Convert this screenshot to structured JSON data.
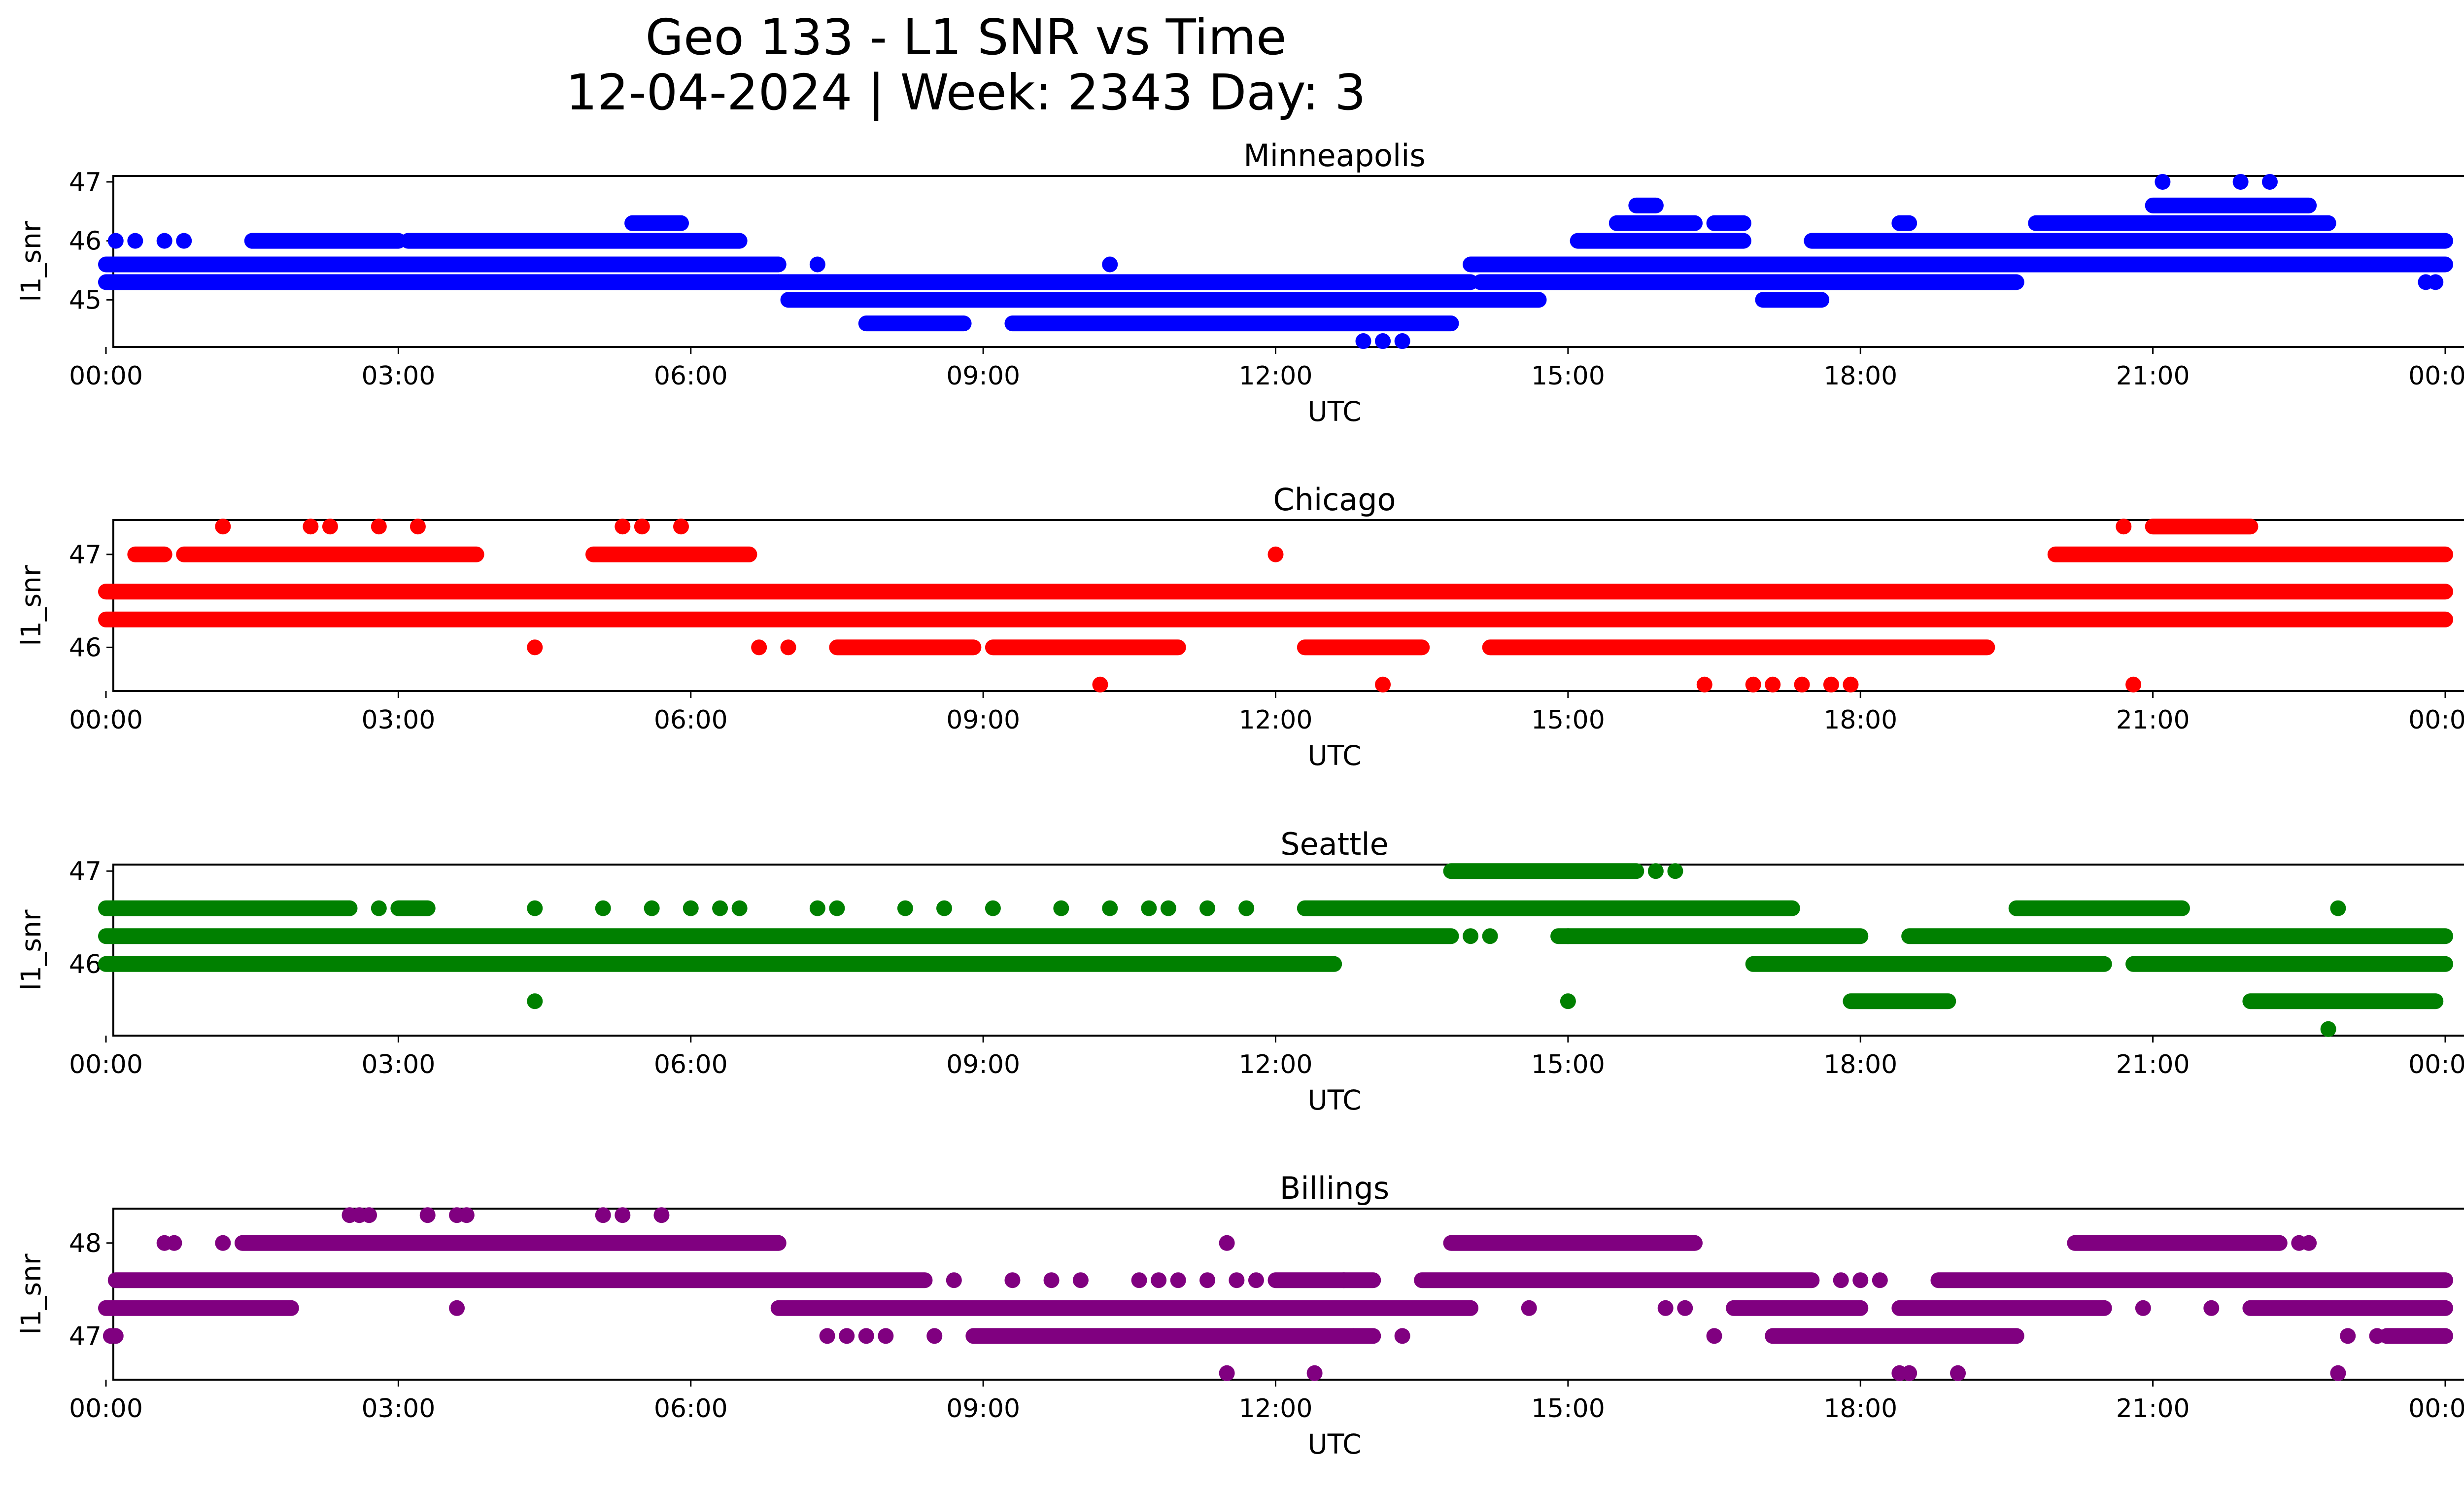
{
  "figure": {
    "title_line1": "Geo 133 - L1 SNR vs Time",
    "title_line2": "12-04-2024 | Week: 2343 Day: 3"
  },
  "chart_data": [
    {
      "type": "scatter",
      "title": "Minneapolis",
      "xlabel": "UTC",
      "ylabel": "l1_snr",
      "color": "#0000ff",
      "x_unit": "hours UTC",
      "x_ticks": [
        "00:00",
        "03:00",
        "06:00",
        "09:00",
        "12:00",
        "15:00",
        "18:00",
        "21:00",
        "00:00"
      ],
      "x_range": [
        0,
        24
      ],
      "y_ticks": [
        45,
        46,
        47
      ],
      "ylim": [
        44.2,
        47.1
      ],
      "series": [
        {
          "y": 45.3,
          "ranges": [
            [
              0,
              6.9
            ]
          ]
        },
        {
          "y": 45.6,
          "ranges": [
            [
              0,
              6.9
            ]
          ]
        },
        {
          "y": 46.0,
          "points": [
            0.1,
            0.3,
            0.6,
            0.8
          ],
          "ranges": [
            [
              1.5,
              3.0
            ],
            [
              3.1,
              6.5
            ]
          ]
        },
        {
          "y": 46.3,
          "ranges": [
            [
              5.4,
              5.9
            ]
          ]
        },
        {
          "y": 45.3,
          "ranges": [
            [
              6.9,
              14.0
            ]
          ]
        },
        {
          "y": 45.0,
          "ranges": [
            [
              7.0,
              14.7
            ]
          ]
        },
        {
          "y": 45.6,
          "points": [
            7.3,
            10.3
          ]
        },
        {
          "y": 44.6,
          "ranges": [
            [
              7.8,
              8.8
            ],
            [
              9.3,
              13.8
            ]
          ]
        },
        {
          "y": 44.3,
          "points": [
            12.9,
            13.1,
            13.3
          ]
        },
        {
          "y": 45.6,
          "ranges": [
            [
              14.0,
              24.0
            ]
          ]
        },
        {
          "y": 45.3,
          "ranges": [
            [
              14.1,
              19.6
            ]
          ]
        },
        {
          "y": 46.0,
          "ranges": [
            [
              15.1,
              16.8
            ],
            [
              17.5,
              24.0
            ]
          ]
        },
        {
          "y": 46.3,
          "ranges": [
            [
              15.5,
              16.3
            ],
            [
              16.5,
              16.8
            ],
            [
              18.4,
              18.5
            ],
            [
              19.8,
              22.8
            ]
          ]
        },
        {
          "y": 46.6,
          "ranges": [
            [
              15.7,
              15.9
            ],
            [
              21.0,
              22.6
            ]
          ]
        },
        {
          "y": 45.0,
          "ranges": [
            [
              17.0,
              17.6
            ]
          ]
        },
        {
          "y": 47.0,
          "points": [
            21.1,
            21.9,
            22.2
          ]
        },
        {
          "y": 45.3,
          "points": [
            23.8,
            23.9
          ]
        }
      ]
    },
    {
      "type": "scatter",
      "title": "Chicago",
      "xlabel": "UTC",
      "ylabel": "l1_snr",
      "color": "#ff0000",
      "x_unit": "hours UTC",
      "x_ticks": [
        "00:00",
        "03:00",
        "06:00",
        "09:00",
        "12:00",
        "15:00",
        "18:00",
        "21:00",
        "00:00"
      ],
      "x_range": [
        0,
        24
      ],
      "y_ticks": [
        46,
        47
      ],
      "ylim": [
        45.53,
        47.37
      ],
      "series": [
        {
          "y": 46.6,
          "ranges": [
            [
              0,
              24.0
            ]
          ]
        },
        {
          "y": 46.3,
          "ranges": [
            [
              0,
              24.0
            ]
          ]
        },
        {
          "y": 47.0,
          "ranges": [
            [
              0.3,
              0.6
            ],
            [
              0.8,
              3.8
            ],
            [
              5.0,
              6.6
            ],
            [
              20.0,
              24.0
            ]
          ]
        },
        {
          "y": 47.3,
          "points": [
            1.2,
            2.1,
            2.3,
            2.8,
            3.2,
            5.3,
            5.5,
            5.9
          ]
        },
        {
          "y": 46.0,
          "points": [
            4.4,
            6.7,
            7.0
          ],
          "ranges": [
            [
              7.5,
              8.9
            ],
            [
              9.1,
              11.0
            ],
            [
              12.3,
              13.5
            ],
            [
              14.2,
              19.3
            ]
          ]
        },
        {
          "y": 47.0,
          "points": [
            12.0
          ]
        },
        {
          "y": 45.6,
          "points": [
            10.2,
            13.1,
            16.4,
            16.9,
            17.1,
            17.4,
            17.7,
            17.9,
            20.8
          ]
        },
        {
          "y": 47.3,
          "points": [
            20.7
          ],
          "ranges": [
            [
              21.0,
              22.0
            ]
          ]
        }
      ]
    },
    {
      "type": "scatter",
      "title": "Seattle",
      "xlabel": "UTC",
      "ylabel": "l1_snr",
      "color": "#008000",
      "x_unit": "hours UTC",
      "x_ticks": [
        "00:00",
        "03:00",
        "06:00",
        "09:00",
        "12:00",
        "15:00",
        "18:00",
        "21:00",
        "00:00"
      ],
      "x_range": [
        0,
        24
      ],
      "y_ticks": [
        46,
        47
      ],
      "ylim": [
        45.23,
        47.07
      ],
      "series": [
        {
          "y": 46.6,
          "ranges": [
            [
              0,
              2.5
            ],
            [
              3.0,
              3.3
            ]
          ],
          "points": [
            2.8,
            4.4,
            5.1,
            5.6,
            6.0,
            6.3,
            6.5,
            7.3,
            7.5,
            8.2,
            8.6,
            9.1,
            9.8,
            10.3,
            10.7,
            10.9,
            11.3,
            11.7
          ]
        },
        {
          "y": 46.3,
          "ranges": [
            [
              0,
              13.8
            ],
            [
              14.9,
              18.0
            ],
            [
              18.5,
              24.0
            ]
          ],
          "points": [
            14.0,
            14.2,
            15.0
          ]
        },
        {
          "y": 46.0,
          "ranges": [
            [
              0,
              12.6
            ],
            [
              16.9,
              20.5
            ],
            [
              20.8,
              24.0
            ]
          ]
        },
        {
          "y": 45.6,
          "points": [
            4.4,
            15.0
          ],
          "ranges": [
            [
              17.9,
              18.9
            ],
            [
              22.0,
              23.9
            ]
          ]
        },
        {
          "y": 46.6,
          "ranges": [
            [
              12.3,
              17.3
            ],
            [
              19.6,
              21.3
            ]
          ]
        },
        {
          "y": 47.0,
          "ranges": [
            [
              13.8,
              15.7
            ]
          ],
          "points": [
            15.9,
            16.1
          ]
        },
        {
          "y": 45.3,
          "points": [
            22.8
          ]
        },
        {
          "y": 46.6,
          "points": [
            22.9
          ]
        }
      ]
    },
    {
      "type": "scatter",
      "title": "Billings",
      "xlabel": "UTC",
      "ylabel": "l1_snr",
      "color": "#800080",
      "x_unit": "hours UTC",
      "x_ticks": [
        "00:00",
        "03:00",
        "06:00",
        "09:00",
        "12:00",
        "15:00",
        "18:00",
        "21:00",
        "00:00"
      ],
      "x_range": [
        0,
        24
      ],
      "y_ticks": [
        47,
        48
      ],
      "ylim": [
        46.53,
        48.37
      ],
      "series": [
        {
          "y": 47.0,
          "points": [
            0.05,
            0.1,
            7.4,
            7.6,
            7.8,
            8.0,
            8.5,
            12.8,
            13.3,
            16.5,
            23.0,
            23.3
          ],
          "ranges": [
            [
              8.9,
              13.0
            ],
            [
              17.1,
              19.6
            ],
            [
              23.4,
              24.0
            ]
          ]
        },
        {
          "y": 47.3,
          "ranges": [
            [
              0,
              1.9
            ],
            [
              6.9,
              14.0
            ],
            [
              16.7,
              18.0
            ],
            [
              18.4,
              20.5
            ],
            [
              22.0,
              24.0
            ]
          ],
          "points": [
            3.6,
            14.6,
            16.0,
            16.2,
            20.9,
            21.6
          ]
        },
        {
          "y": 47.6,
          "ranges": [
            [
              0.1,
              8.4
            ],
            [
              12.0,
              13.0
            ],
            [
              13.5,
              17.5
            ],
            [
              18.8,
              24.0
            ]
          ],
          "points": [
            8.7,
            9.3,
            9.7,
            10.0,
            10.6,
            10.8,
            11.0,
            11.3,
            11.6,
            11.8,
            12.7,
            17.8,
            18.0,
            18.2
          ]
        },
        {
          "y": 48.0,
          "ranges": [
            [
              1.4,
              6.9
            ],
            [
              13.8,
              16.3
            ],
            [
              20.2,
              22.3
            ]
          ],
          "points": [
            0.6,
            0.7,
            1.2,
            11.5,
            22.5,
            22.6
          ]
        },
        {
          "y": 48.3,
          "points": [
            2.5,
            2.6,
            2.7,
            3.3,
            3.6,
            3.7,
            5.1,
            5.3,
            5.7
          ]
        },
        {
          "y": 46.6,
          "points": [
            11.5,
            12.4,
            18.4,
            18.5,
            19.0,
            22.9
          ]
        }
      ]
    }
  ]
}
